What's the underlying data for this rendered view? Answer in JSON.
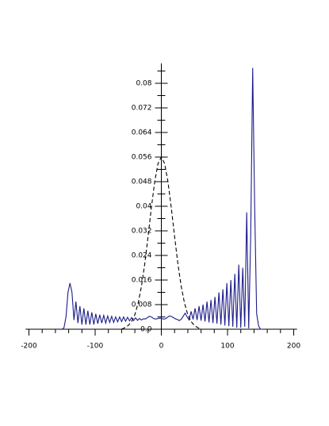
{
  "chart_data": {
    "type": "line",
    "xlim": [
      -205,
      205
    ],
    "ylim": [
      0,
      0.0865
    ],
    "xticks": [
      -200,
      -100,
      0,
      100,
      200
    ],
    "xticks_minor": [
      -180,
      -160,
      -140,
      -120,
      -80,
      -60,
      -40,
      -20,
      20,
      40,
      60,
      80,
      120,
      140,
      160,
      180
    ],
    "yticks": [
      {
        "value": 0,
        "label": "0.0"
      },
      0.008,
      0.016,
      0.024,
      0.032,
      0.04,
      0.048,
      0.056,
      0.064,
      0.072,
      0.08
    ],
    "yticks_minor": [
      0.004,
      0.012,
      0.02,
      0.028,
      0.036,
      0.044,
      0.052,
      0.06,
      0.068,
      0.076,
      0.084
    ],
    "series": [
      {
        "color": "#1c1c8a",
        "linestyle": "solid",
        "x": [
          -150,
          -147,
          -144,
          -141,
          -138,
          -135,
          -132,
          -129,
          -126,
          -123,
          -120,
          -117,
          -114,
          -111,
          -108,
          -105,
          -102,
          -99,
          -96,
          -93,
          -90,
          -87,
          -84,
          -81,
          -78,
          -75,
          -72,
          -69,
          -66,
          -63,
          -60,
          -57,
          -54,
          -51,
          -48,
          -45,
          -42,
          -39,
          -36,
          -33,
          -30,
          -27,
          -24,
          -21,
          -18,
          -15,
          -12,
          -9,
          -6,
          -3,
          0,
          3,
          6,
          9,
          12,
          15,
          18,
          21,
          24,
          27,
          30,
          33,
          36,
          39,
          42,
          45,
          48,
          51,
          54,
          57,
          60,
          63,
          66,
          69,
          72,
          75,
          78,
          81,
          84,
          87,
          90,
          93,
          96,
          99,
          102,
          105,
          108,
          111,
          114,
          117,
          120,
          123,
          126,
          129,
          132,
          135,
          138,
          141,
          144,
          147,
          150,
          153
        ],
        "values": [
          0,
          0.0005,
          0.004,
          0.012,
          0.015,
          0.012,
          0.003,
          0.009,
          0.002,
          0.0075,
          0.0015,
          0.0068,
          0.0015,
          0.006,
          0.0015,
          0.0055,
          0.0015,
          0.005,
          0.0018,
          0.0047,
          0.002,
          0.0045,
          0.002,
          0.0043,
          0.0022,
          0.0042,
          0.0022,
          0.004,
          0.0024,
          0.004,
          0.0025,
          0.004,
          0.0026,
          0.0039,
          0.0027,
          0.0038,
          0.0028,
          0.0037,
          0.0029,
          0.0035,
          0.003,
          0.0034,
          0.0033,
          0.0038,
          0.0042,
          0.004,
          0.0035,
          0.0033,
          0.0034,
          0.0036,
          0.0035,
          0.0033,
          0.0034,
          0.0038,
          0.0043,
          0.0042,
          0.0038,
          0.0034,
          0.0032,
          0.0028,
          0.0032,
          0.0042,
          0.0052,
          0.004,
          0.003,
          0.0058,
          0.0032,
          0.0068,
          0.003,
          0.0075,
          0.0028,
          0.008,
          0.0025,
          0.009,
          0.0022,
          0.0095,
          0.002,
          0.0105,
          0.0018,
          0.012,
          0.0015,
          0.013,
          0.0012,
          0.015,
          0.001,
          0.016,
          0.0008,
          0.018,
          0.0005,
          0.021,
          0.0005,
          0.02,
          0.0008,
          0.038,
          0.0003,
          0.03,
          0.085,
          0.04,
          0.005,
          0.001,
          0,
          0
        ]
      },
      {
        "color": "#000000",
        "linestyle": "dashed",
        "x": [
          -60,
          -55,
          -50,
          -45,
          -40,
          -35,
          -30,
          -25,
          -20,
          -15,
          -10,
          -5,
          0,
          5,
          10,
          15,
          20,
          25,
          30,
          35,
          40,
          45,
          50,
          55,
          60
        ],
        "values": [
          0,
          0.0005,
          0.0012,
          0.0025,
          0.0047,
          0.0085,
          0.014,
          0.0213,
          0.0302,
          0.0396,
          0.048,
          0.0539,
          0.056,
          0.0539,
          0.048,
          0.0396,
          0.0302,
          0.0213,
          0.014,
          0.0085,
          0.0047,
          0.0025,
          0.0012,
          0.0005,
          0
        ]
      }
    ]
  }
}
